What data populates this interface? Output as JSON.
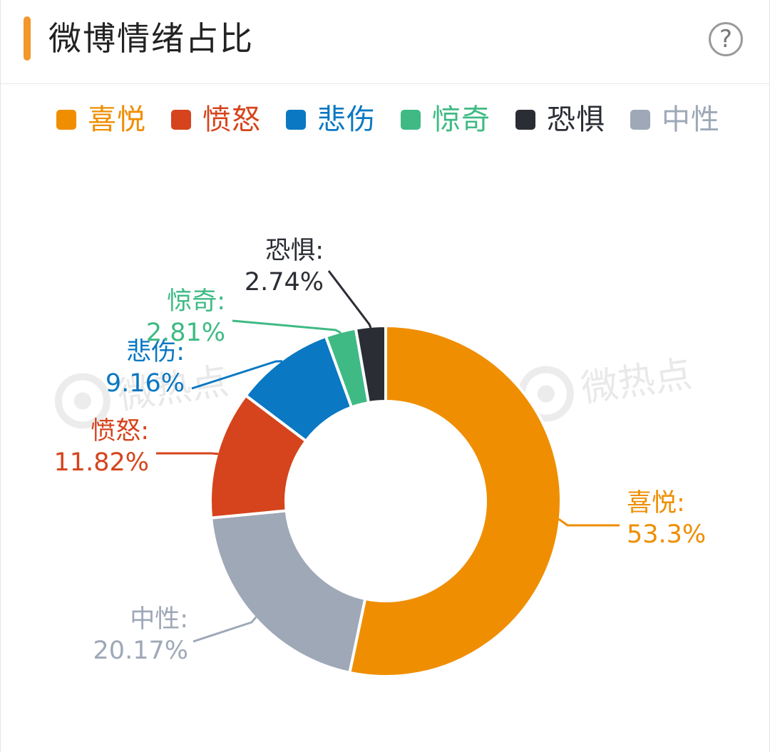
{
  "header": {
    "title": "微博情绪占比",
    "help_icon": "question-circle-icon",
    "accent_color": "#f3962c"
  },
  "watermark": {
    "text": "微热点"
  },
  "chart_data": {
    "type": "donut",
    "title": "",
    "legend_position": "top",
    "series": [
      {
        "name": "喜悦",
        "value": 53.3,
        "label": "53.3%",
        "color": "#ef8e00"
      },
      {
        "name": "中性",
        "value": 20.17,
        "label": "20.17%",
        "color": "#9ea8b7"
      },
      {
        "name": "愤怒",
        "value": 11.82,
        "label": "11.82%",
        "color": "#d5441c"
      },
      {
        "name": "悲伤",
        "value": 9.16,
        "label": "9.16%",
        "color": "#0a78c2"
      },
      {
        "name": "惊奇",
        "value": 2.81,
        "label": "2.81%",
        "color": "#3fba84"
      },
      {
        "name": "恐惧",
        "value": 2.74,
        "label": "2.74%",
        "color": "#2a2e34"
      }
    ],
    "legend_order": [
      "喜悦",
      "愤怒",
      "悲伤",
      "惊奇",
      "恐惧",
      "中性"
    ]
  }
}
